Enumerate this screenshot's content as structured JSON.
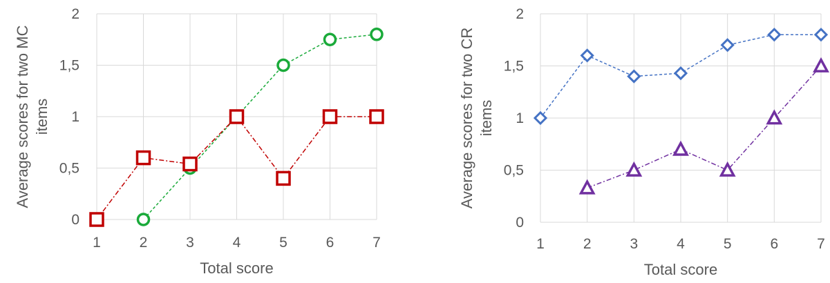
{
  "chart_data": [
    {
      "type": "line",
      "xlabel": "Total score",
      "ylabel": "Average scores for two MC items",
      "ylabel_lines": [
        "Average scores for two MC",
        "items"
      ],
      "x_ticks": [
        "1",
        "2",
        "3",
        "4",
        "5",
        "6",
        "7"
      ],
      "y_ticks": [
        "0",
        "0,5",
        "1",
        "1,5",
        "2"
      ],
      "xlim": [
        1,
        7
      ],
      "ylim": [
        0,
        2
      ],
      "grid": true,
      "series": [
        {
          "marker": "circle",
          "color": "#1aaa3a",
          "line_style": "dashed",
          "points": [
            [
              2,
              0
            ],
            [
              3,
              0.5
            ],
            [
              4,
              1
            ],
            [
              5,
              1.5
            ],
            [
              6,
              1.75
            ],
            [
              7,
              1.8
            ]
          ]
        },
        {
          "marker": "square",
          "color": "#c00000",
          "line_style": "dash-dot",
          "points": [
            [
              1,
              0
            ],
            [
              2,
              0.6
            ],
            [
              3,
              0.54
            ],
            [
              4,
              1
            ],
            [
              5,
              0.4
            ],
            [
              6,
              1
            ],
            [
              7,
              1
            ]
          ]
        }
      ]
    },
    {
      "type": "line",
      "xlabel": "Total score",
      "ylabel": "Average scores for two CR items",
      "ylabel_lines": [
        "Average scores for two CR",
        "items"
      ],
      "x_ticks": [
        "1",
        "2",
        "3",
        "4",
        "5",
        "6",
        "7"
      ],
      "y_ticks": [
        "0",
        "0,5",
        "1",
        "1,5",
        "2"
      ],
      "xlim": [
        1,
        7
      ],
      "ylim": [
        0,
        2
      ],
      "grid": true,
      "series": [
        {
          "marker": "diamond",
          "color": "#4472c4",
          "line_style": "dashed",
          "points": [
            [
              1,
              1
            ],
            [
              2,
              1.6
            ],
            [
              3,
              1.4
            ],
            [
              4,
              1.43
            ],
            [
              5,
              1.7
            ],
            [
              6,
              1.8
            ],
            [
              7,
              1.8
            ]
          ]
        },
        {
          "marker": "triangle",
          "color": "#7030a0",
          "line_style": "dash-dot",
          "points": [
            [
              2,
              0.33
            ],
            [
              3,
              0.5
            ],
            [
              4,
              0.7
            ],
            [
              5,
              0.5
            ],
            [
              6,
              1
            ],
            [
              7,
              1.5
            ]
          ]
        }
      ]
    }
  ]
}
